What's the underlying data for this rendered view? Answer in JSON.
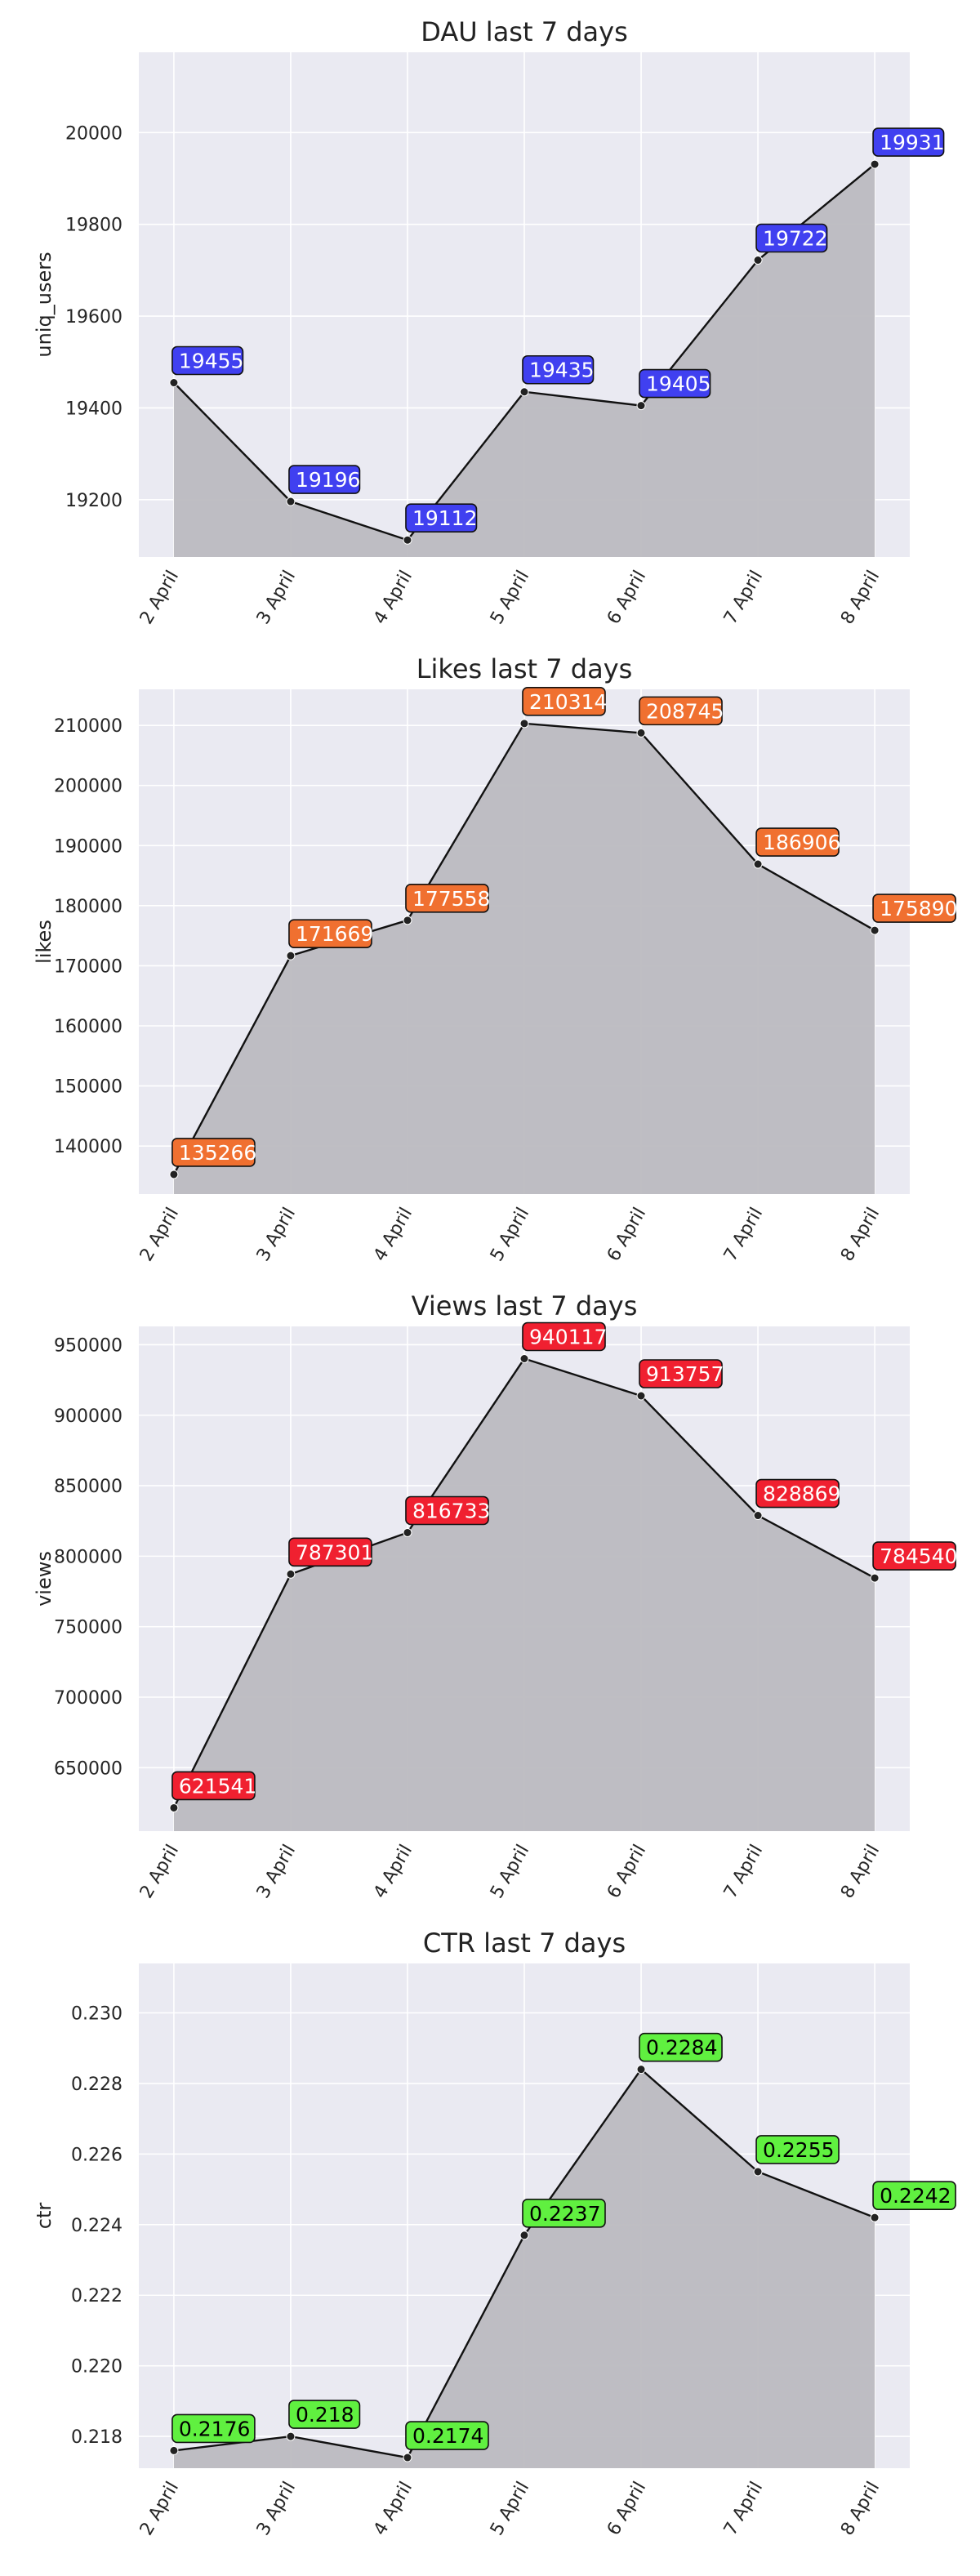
{
  "chart_data": [
    {
      "type": "area",
      "title": "DAU last 7 days",
      "xlabel": "",
      "ylabel": "uniq_users",
      "categories": [
        "2 April",
        "3 April",
        "4 April",
        "5 April",
        "6 April",
        "7 April",
        "8 April"
      ],
      "values": [
        19455,
        19196,
        19112,
        19435,
        19405,
        19722,
        19931
      ],
      "value_labels": [
        "19455",
        "19196",
        "19112",
        "19435",
        "19405",
        "19722",
        "19931"
      ],
      "ylim": [
        19075,
        20175
      ],
      "yticks": [
        19200,
        19400,
        19600,
        19800,
        20000
      ],
      "ytick_labels": [
        "19200",
        "19400",
        "19600",
        "19800",
        "20000"
      ],
      "grid": true,
      "legend": false,
      "label_color": "#4040f0",
      "label_text_color": "#ffffff"
    },
    {
      "type": "area",
      "title": "Likes last 7 days",
      "xlabel": "",
      "ylabel": "likes",
      "categories": [
        "2 April",
        "3 April",
        "4 April",
        "5 April",
        "6 April",
        "7 April",
        "8 April"
      ],
      "values": [
        135266,
        171669,
        177558,
        210314,
        208745,
        186906,
        175890
      ],
      "value_labels": [
        "135266",
        "171669",
        "177558",
        "210314",
        "208745",
        "186906",
        "175890"
      ],
      "ylim": [
        132000,
        216000
      ],
      "yticks": [
        140000,
        150000,
        160000,
        170000,
        180000,
        190000,
        200000,
        210000
      ],
      "ytick_labels": [
        "140000",
        "150000",
        "160000",
        "170000",
        "180000",
        "190000",
        "200000",
        "210000"
      ],
      "grid": true,
      "legend": false,
      "label_color": "#f07030",
      "label_text_color": "#ffffff"
    },
    {
      "type": "area",
      "title": "Views last 7 days",
      "xlabel": "",
      "ylabel": "views",
      "categories": [
        "2 April",
        "3 April",
        "4 April",
        "5 April",
        "6 April",
        "7 April",
        "8 April"
      ],
      "values": [
        621541,
        787301,
        816733,
        940117,
        913757,
        828869,
        784540
      ],
      "value_labels": [
        "621541",
        "787301",
        "816733",
        "940117",
        "913757",
        "828869",
        "784540"
      ],
      "ylim": [
        605000,
        963000
      ],
      "yticks": [
        650000,
        700000,
        750000,
        800000,
        850000,
        900000,
        950000
      ],
      "ytick_labels": [
        "650000",
        "700000",
        "750000",
        "800000",
        "850000",
        "900000",
        "950000"
      ],
      "grid": true,
      "legend": false,
      "label_color": "#f02030",
      "label_text_color": "#ffffff"
    },
    {
      "type": "area",
      "title": "CTR last 7 days",
      "xlabel": "",
      "ylabel": "ctr",
      "categories": [
        "2 April",
        "3 April",
        "4 April",
        "5 April",
        "6 April",
        "7 April",
        "8 April"
      ],
      "values": [
        0.2176,
        0.218,
        0.2174,
        0.2237,
        0.2284,
        0.2255,
        0.2242
      ],
      "value_labels": [
        "0.2176",
        "0.218",
        "0.2174",
        "0.2237",
        "0.2284",
        "0.2255",
        "0.2242"
      ],
      "ylim": [
        0.2171,
        0.2314
      ],
      "yticks": [
        0.218,
        0.22,
        0.222,
        0.224,
        0.226,
        0.228,
        0.23
      ],
      "ytick_labels": [
        "0.218",
        "0.220",
        "0.222",
        "0.224",
        "0.226",
        "0.228",
        "0.230"
      ],
      "grid": true,
      "legend": false,
      "label_color": "#60f040",
      "label_text_color": "#000000"
    }
  ],
  "colors": {
    "plot_background": "#eaeaf2",
    "gridline": "#ffffff",
    "area_fill": "#bcbac0",
    "line": "#111111"
  }
}
